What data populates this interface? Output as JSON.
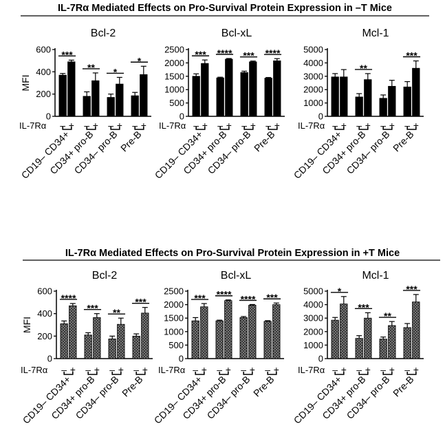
{
  "chart_data": [
    {
      "title": "IL-7Rα Mediated Effects on Pro-Survival Protein Expression in –T Mice",
      "panels": [
        {
          "type": "bar",
          "title": "Bcl-2",
          "ylabel": "MFI",
          "ylim": [
            0,
            600
          ],
          "yticks": [
            "0",
            "200",
            "400",
            "600"
          ],
          "categories": [
            "CD19– CD34+",
            "CD34+ pro-B",
            "CD34– pro-B",
            "Pre-B"
          ],
          "groups": [
            "–",
            "+"
          ],
          "values": [
            [
              370,
              490
            ],
            [
              180,
              320
            ],
            [
              170,
              290
            ],
            [
              185,
              375
            ]
          ],
          "errors": [
            [
              15,
              15
            ],
            [
              40,
              70
            ],
            [
              30,
              60
            ],
            [
              30,
              75
            ]
          ],
          "significance": [
            "***",
            "**",
            "*",
            "*"
          ]
        },
        {
          "type": "bar",
          "title": "Bcl-xL",
          "ylabel": "",
          "ylim": [
            0,
            2500
          ],
          "yticks": [
            "0",
            "500",
            "1000",
            "1500",
            "2000",
            "2500"
          ],
          "categories": [
            "CD19– CD34+",
            "CD34+ pro-B",
            "CD34– pro-B",
            "Pre-B"
          ],
          "groups": [
            "–",
            "+"
          ],
          "values": [
            [
              1500,
              1980
            ],
            [
              1440,
              2140
            ],
            [
              1640,
              2040
            ],
            [
              1430,
              2080
            ]
          ],
          "errors": [
            [
              90,
              130
            ],
            [
              25,
              25
            ],
            [
              50,
              30
            ],
            [
              25,
              80
            ]
          ],
          "significance": [
            "***",
            "****",
            "***",
            "****"
          ]
        },
        {
          "type": "bar",
          "title": "Mcl-1",
          "ylabel": "",
          "ylim": [
            0,
            5000
          ],
          "yticks": [
            "0",
            "1000",
            "2000",
            "3000",
            "4000",
            "5000"
          ],
          "categories": [
            "CD19– CD34+",
            "CD34+ pro-B",
            "CD34– pro-B",
            "Pre-B"
          ],
          "groups": [
            "–",
            "+"
          ],
          "values": [
            [
              2950,
              2950
            ],
            [
              1450,
              2750
            ],
            [
              1350,
              2250
            ],
            [
              2200,
              3600
            ]
          ],
          "errors": [
            [
              250,
              550
            ],
            [
              250,
              450
            ],
            [
              250,
              450
            ],
            [
              400,
              550
            ]
          ],
          "significance": [
            "",
            "**",
            "",
            "***"
          ]
        }
      ]
    },
    {
      "title": "IL-7Rα Mediated Effects on Pro-Survival Protein Expression in +T Mice",
      "panels": [
        {
          "type": "bar",
          "title": "Bcl-2",
          "ylabel": "MFI",
          "ylim": [
            0,
            600
          ],
          "yticks": [
            "0",
            "200",
            "400",
            "600"
          ],
          "categories": [
            "CD19– CD34+",
            "CD34+ pro-B",
            "CD34– pro-B",
            "Pre-B"
          ],
          "groups": [
            "–",
            "+"
          ],
          "values": [
            [
              310,
              470
            ],
            [
              210,
              365
            ],
            [
              175,
              305
            ],
            [
              200,
              405
            ]
          ],
          "errors": [
            [
              25,
              20
            ],
            [
              20,
              35
            ],
            [
              25,
              55
            ],
            [
              20,
              50
            ]
          ],
          "significance": [
            "****",
            "***",
            "**",
            "***"
          ]
        },
        {
          "type": "bar",
          "title": "Bcl-xL",
          "ylabel": "",
          "ylim": [
            0,
            2500
          ],
          "yticks": [
            "0",
            "500",
            "1000",
            "1500",
            "2000",
            "2500"
          ],
          "categories": [
            "CD19– CD34+",
            "CD34+ pro-B",
            "CD34– pro-B",
            "Pre-B"
          ],
          "groups": [
            "–",
            "+"
          ],
          "values": [
            [
              1400,
              1920
            ],
            [
              1400,
              2150
            ],
            [
              1520,
              1980
            ],
            [
              1380,
              2000
            ]
          ],
          "errors": [
            [
              120,
              120
            ],
            [
              25,
              25
            ],
            [
              40,
              25
            ],
            [
              25,
              60
            ]
          ],
          "significance": [
            "***",
            "****",
            "****",
            "***"
          ]
        },
        {
          "type": "bar",
          "title": "Mcl-1",
          "ylabel": "",
          "ylim": [
            0,
            5000
          ],
          "yticks": [
            "0",
            "1000",
            "2000",
            "3000",
            "4000",
            "5000"
          ],
          "categories": [
            "CD19– CD34+",
            "CD34+ pro-B",
            "CD34– pro-B",
            "Pre-B"
          ],
          "groups": [
            "–",
            "+"
          ],
          "values": [
            [
              2850,
              4050
            ],
            [
              1500,
              3000
            ],
            [
              1450,
              2450
            ],
            [
              2300,
              4200
            ]
          ],
          "errors": [
            [
              200,
              550
            ],
            [
              200,
              400
            ],
            [
              150,
              300
            ],
            [
              300,
              550
            ]
          ],
          "significance": [
            "*",
            "***",
            "**",
            "***"
          ]
        }
      ]
    }
  ],
  "il7r_label": "IL-7Rα",
  "colors": {
    "bar_solid": "#000000",
    "bar_hatched_fill": "#8a8a8a",
    "axis": "#000000"
  }
}
